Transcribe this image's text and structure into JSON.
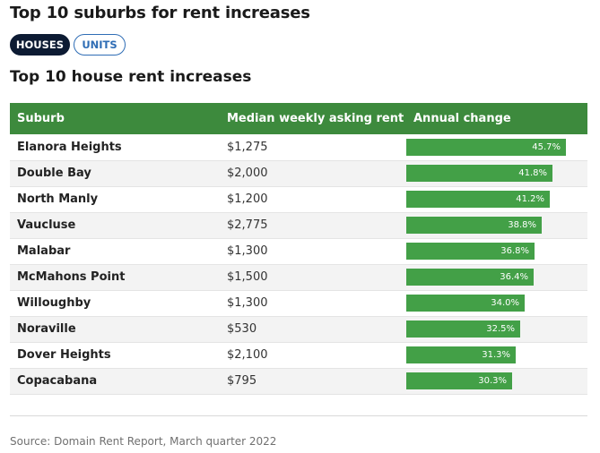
{
  "title": "Top 10 suburbs for rent increases",
  "tabs": [
    {
      "label": "HOUSES",
      "active": true
    },
    {
      "label": "UNITS",
      "active": false
    }
  ],
  "subtitle": "Top 10 house rent increases",
  "table": {
    "headers": [
      "Suburb",
      "Median weekly asking rent",
      "Annual change"
    ],
    "rows": [
      {
        "suburb": "Elanora Heights",
        "rent": "$1,275",
        "change": "45.7%",
        "value": 45.7
      },
      {
        "suburb": "Double Bay",
        "rent": "$2,000",
        "change": "41.8%",
        "value": 41.8
      },
      {
        "suburb": "North Manly",
        "rent": "$1,200",
        "change": "41.2%",
        "value": 41.2
      },
      {
        "suburb": "Vaucluse",
        "rent": "$2,775",
        "change": "38.8%",
        "value": 38.8
      },
      {
        "suburb": "Malabar",
        "rent": "$1,300",
        "change": "36.8%",
        "value": 36.8
      },
      {
        "suburb": "McMahons Point",
        "rent": "$1,500",
        "change": "36.4%",
        "value": 36.4
      },
      {
        "suburb": "Willoughby",
        "rent": "$1,300",
        "change": "34.0%",
        "value": 34.0
      },
      {
        "suburb": "Noraville",
        "rent": "$530",
        "change": "32.5%",
        "value": 32.5
      },
      {
        "suburb": "Dover Heights",
        "rent": "$2,100",
        "change": "31.3%",
        "value": 31.3
      },
      {
        "suburb": "Copacabana",
        "rent": "$795",
        "change": "30.3%",
        "value": 30.3
      }
    ]
  },
  "source": "Source: Domain Rent Report, March quarter 2022",
  "colors": {
    "header_bg": "#3d8a3d",
    "bar": "#43a047",
    "tab_active": "#0d1b33",
    "tab_inactive_border": "#2f6db5"
  }
}
